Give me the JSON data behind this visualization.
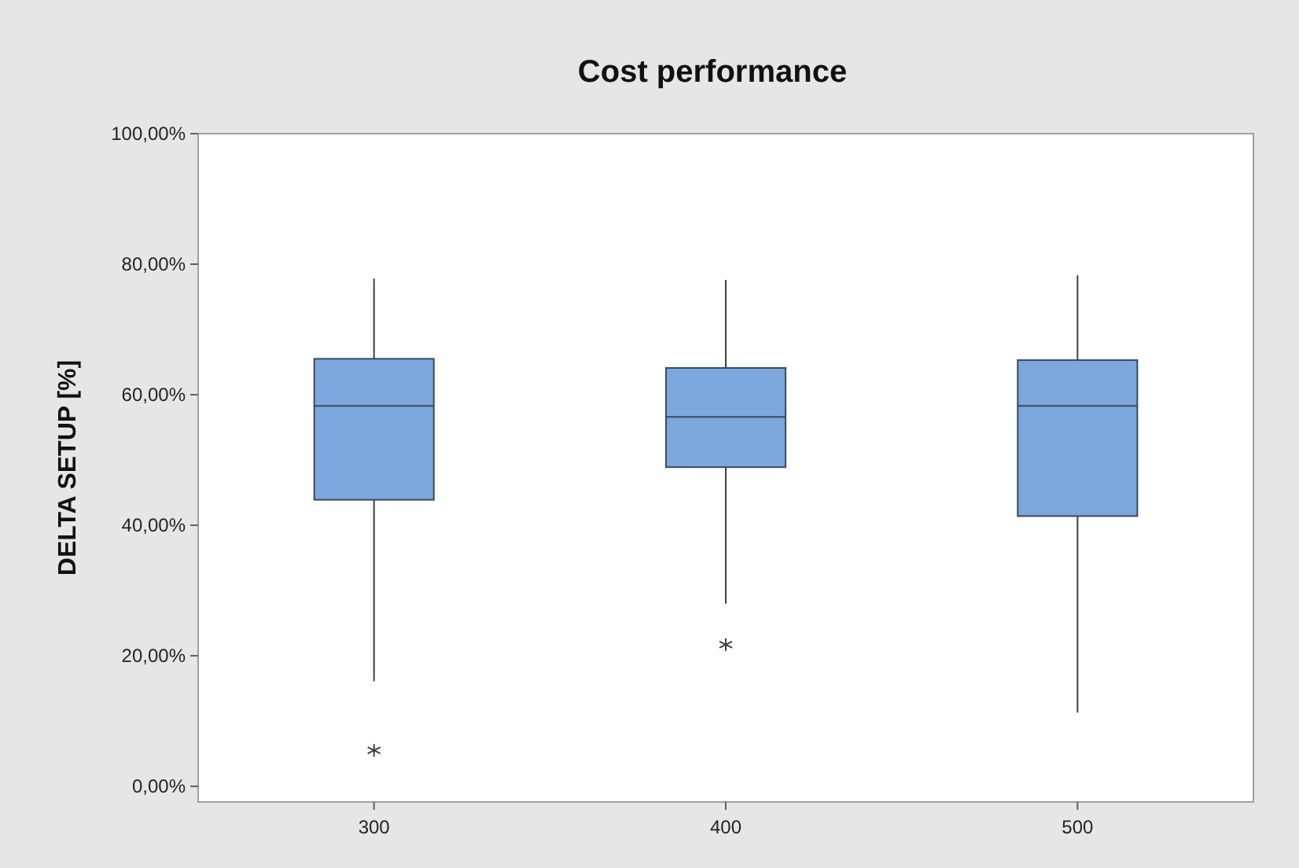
{
  "chart_data": {
    "type": "box",
    "title": "Cost performance",
    "ylabel": "DELTA SETUP [%]",
    "categories": [
      "300",
      "400",
      "500"
    ],
    "boxes": [
      {
        "low": 16.1,
        "q1": 43.9,
        "median": 58.3,
        "q3": 65.5,
        "high": 77.8,
        "outliers": [
          5.5
        ]
      },
      {
        "low": 28.0,
        "q1": 48.9,
        "median": 56.6,
        "q3": 64.1,
        "high": 77.6,
        "outliers": [
          21.7
        ]
      },
      {
        "low": 11.3,
        "q1": 41.4,
        "median": 58.3,
        "q3": 65.3,
        "high": 78.3
      }
    ],
    "color": "#7ba7dc",
    "ylim": [
      -2.4,
      100
    ],
    "yticks": [
      {
        "value": 0,
        "label": "0,00%"
      },
      {
        "value": 20,
        "label": "20,00%"
      },
      {
        "value": 40,
        "label": "40,00%"
      },
      {
        "value": 60,
        "label": "60,00%"
      },
      {
        "value": 80,
        "label": "80,00%"
      },
      {
        "value": 100,
        "label": "100,00%"
      }
    ],
    "grid": false
  }
}
